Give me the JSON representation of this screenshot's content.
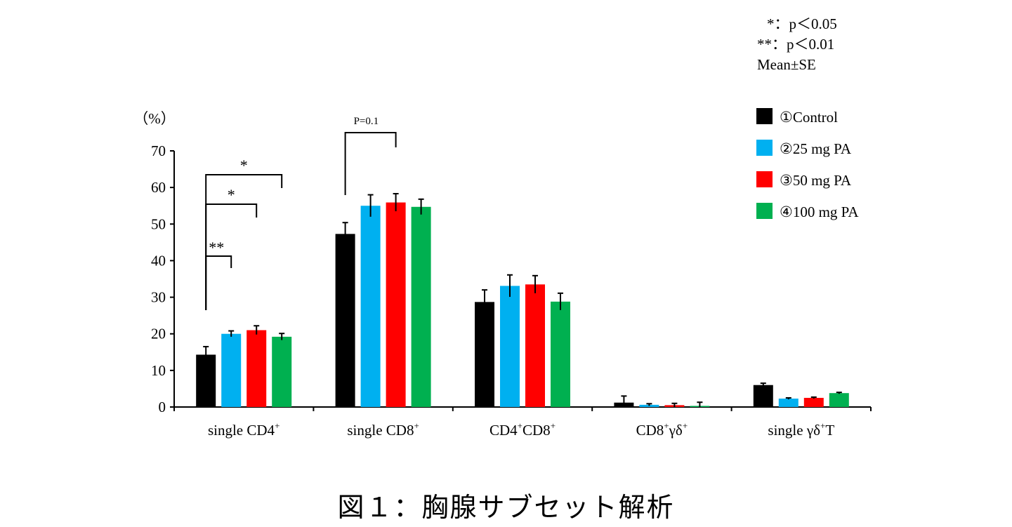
{
  "notes": {
    "sig1": "*：p＜0.05",
    "sig2": "**：p＜0.01",
    "summary": "Mean±SE"
  },
  "caption": "図１：胸腺サブセット解析",
  "chart_data": {
    "type": "bar",
    "ylabel": "（%）",
    "ylim": [
      0,
      70
    ],
    "yticks": [
      0,
      10,
      20,
      30,
      40,
      50,
      60,
      70
    ],
    "categories": [
      {
        "base": "single CD4",
        "sup": "+",
        "rest": ""
      },
      {
        "base": "single CD8",
        "sup": "+",
        "rest": ""
      },
      {
        "parts": [
          [
            "CD4",
            "+"
          ],
          [
            "CD8",
            "+"
          ]
        ]
      },
      {
        "parts": [
          [
            "CD8",
            "+"
          ],
          [
            "γδ",
            "+"
          ]
        ]
      },
      {
        "parts": [
          [
            "single γδ",
            "+"
          ],
          [
            "T",
            ""
          ]
        ]
      }
    ],
    "category_labels": [
      "single CD4+",
      "single CD8+",
      "CD4+CD8+",
      "CD8+γδ+",
      "single γδ+T"
    ],
    "series": [
      {
        "name": "①Control",
        "color": "#000000",
        "values": [
          14.3,
          47.3,
          28.7,
          1.2,
          6.0
        ],
        "errors": [
          2.2,
          3.1,
          3.3,
          1.8,
          0.5
        ]
      },
      {
        "name": "②25 mg PA",
        "color": "#00B0F0",
        "values": [
          20.0,
          55.0,
          33.1,
          0.6,
          2.3
        ],
        "errors": [
          0.8,
          3.0,
          3.0,
          0.3,
          0.2
        ]
      },
      {
        "name": "③50 mg PA",
        "color": "#FF0000",
        "values": [
          21.0,
          55.9,
          33.5,
          0.5,
          2.5
        ],
        "errors": [
          1.2,
          2.4,
          2.4,
          0.5,
          0.2
        ]
      },
      {
        "name": "④100 mg PA",
        "color": "#00B050",
        "values": [
          19.2,
          54.7,
          28.8,
          0.3,
          3.8
        ],
        "errors": [
          0.9,
          2.1,
          2.3,
          1.0,
          0.2
        ]
      }
    ],
    "annotations": [
      {
        "label": "**",
        "category": 0,
        "from_series": 0,
        "to_series": 1
      },
      {
        "label": "*",
        "category": 0,
        "from_series": 0,
        "to_series": 2
      },
      {
        "label": "*",
        "category": 0,
        "from_series": 0,
        "to_series": 3
      },
      {
        "label": "P=0.1",
        "category": 1,
        "from_series": 0,
        "to_series": 2
      }
    ],
    "legend_position": "top-right",
    "grid": false
  }
}
